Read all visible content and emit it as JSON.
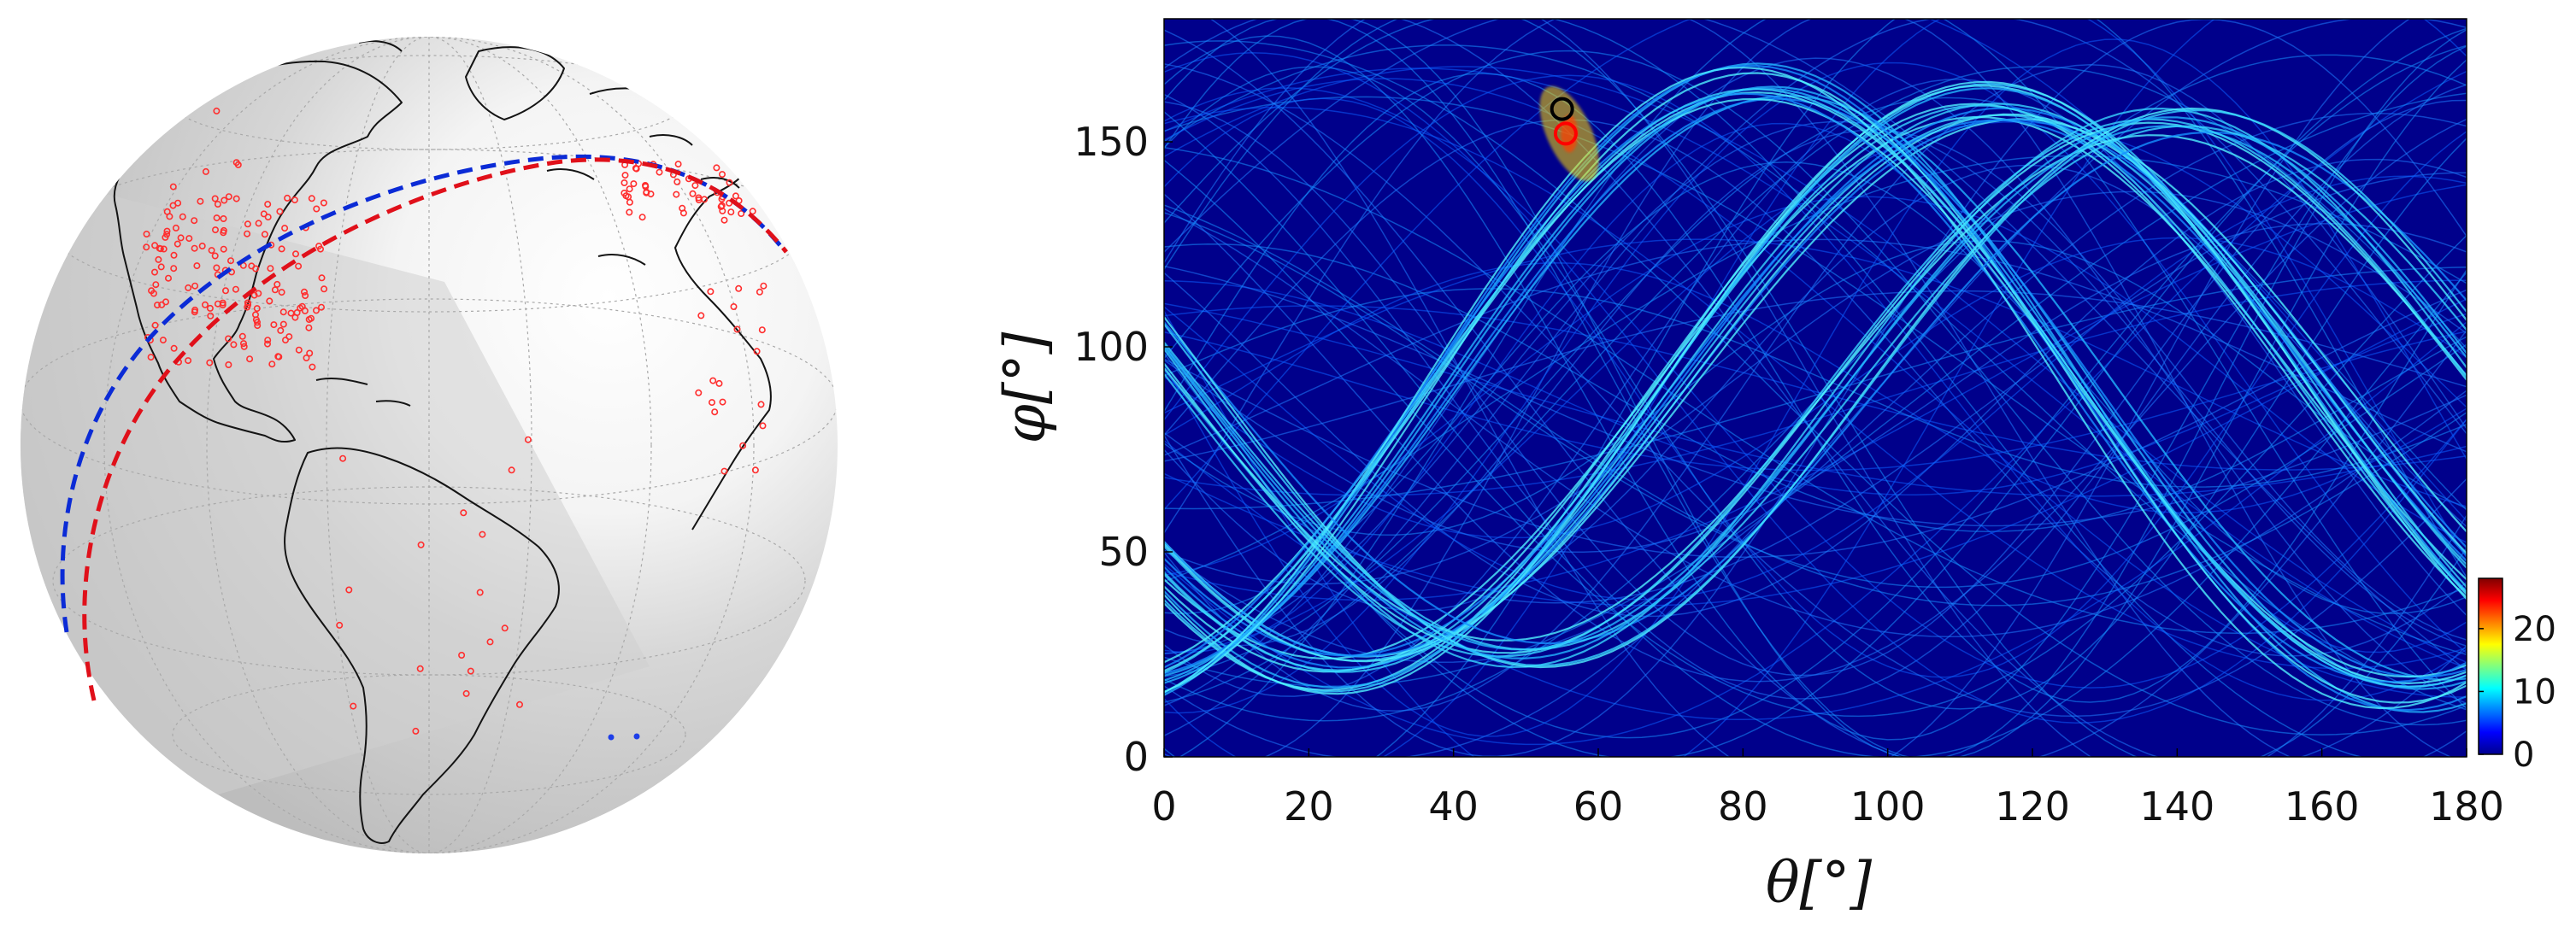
{
  "figure": {
    "left_panel": {
      "type": "globe",
      "colors": {
        "ocean": "#d3d3d3",
        "coast": "#111111",
        "markers": "#ff3b3b",
        "curve_a": "#0b2bd6",
        "curve_b": "#e0101a"
      }
    },
    "right_panel": {
      "colorbar": {
        "ticks": [
          "0",
          "10",
          "20"
        ],
        "colormap": "jet"
      }
    }
  },
  "chart_data": {
    "type": "heatmap",
    "xlabel": "θ[°]",
    "ylabel": "φ[°]",
    "xlim": [
      0,
      180
    ],
    "ylim": [
      0,
      180
    ],
    "xticks": [
      0,
      20,
      40,
      60,
      80,
      100,
      120,
      140,
      160,
      180
    ],
    "yticks": [
      0,
      50,
      100,
      150
    ],
    "clim": [
      0,
      28
    ],
    "colorbar_ticks": [
      0,
      10,
      20
    ],
    "markers": [
      {
        "theta": 55,
        "phi": 158,
        "color": "#000000"
      },
      {
        "theta": 55.5,
        "phi": 152,
        "color": "#ff0000"
      }
    ],
    "bundles": [
      {
        "shift": 0,
        "count": 14,
        "spread": 6,
        "amp": 70
      },
      {
        "shift": 65,
        "count": 12,
        "spread": 6,
        "amp": 75
      },
      {
        "shift": -50,
        "count": 10,
        "spread": 8,
        "amp": 65
      }
    ]
  }
}
